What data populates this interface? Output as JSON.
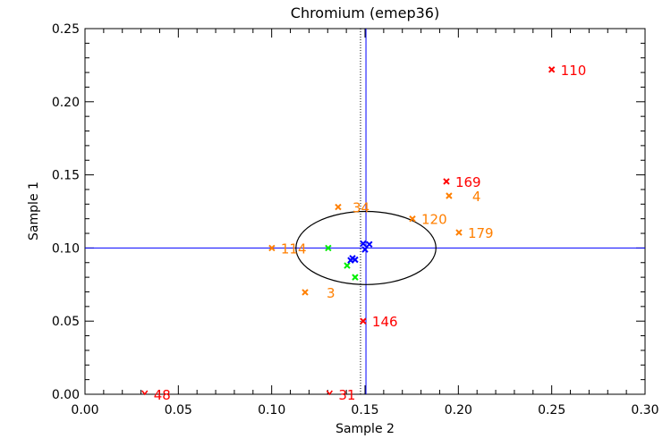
{
  "chart_data": {
    "type": "scatter",
    "title": "Chromium (emep36)",
    "xlabel": "Sample 2",
    "ylabel": "Sample 1",
    "xlim": [
      0.0,
      0.3
    ],
    "ylim": [
      0.0,
      0.25
    ],
    "xticks": [
      "0.00",
      "0.05",
      "0.10",
      "0.15",
      "0.20",
      "0.25",
      "0.30"
    ],
    "yticks": [
      "0.00",
      "0.05",
      "0.10",
      "0.15",
      "0.20",
      "0.25"
    ],
    "grid": false,
    "reference_lines": {
      "vertical_solid_x": 0.1505,
      "vertical_dotted_x": 0.1476,
      "horizontal_y": 0.1
    },
    "ellipse": {
      "cx": 0.1505,
      "cy": 0.1,
      "rx": 0.0375,
      "ry": 0.025
    },
    "colors": {
      "red": "#ff0000",
      "orange": "#ff7f00",
      "green": "#00ee00",
      "blue": "#0000ff",
      "line_blue": "#0000ff"
    },
    "series": [
      {
        "name": "red",
        "points": [
          {
            "x": 0.25,
            "y": 0.222,
            "label": "110"
          },
          {
            "x": 0.1936,
            "y": 0.1455,
            "label": "169"
          },
          {
            "x": 0.149,
            "y": 0.05,
            "label": "146"
          },
          {
            "x": 0.032,
            "y": 0.0,
            "label": "48",
            "off_scale": true
          },
          {
            "x": 0.131,
            "y": 0.0,
            "label": "31",
            "off_scale": true
          }
        ]
      },
      {
        "name": "orange",
        "points": [
          {
            "x": 0.195,
            "y": 0.1357,
            "label": "4"
          },
          {
            "x": 0.1356,
            "y": 0.128,
            "label": "34"
          },
          {
            "x": 0.1754,
            "y": 0.12,
            "label": "120"
          },
          {
            "x": 0.2003,
            "y": 0.1106,
            "label": "179"
          },
          {
            "x": 0.1001,
            "y": 0.1,
            "label": "114"
          },
          {
            "x": 0.1179,
            "y": 0.0697,
            "label": "3"
          }
        ]
      },
      {
        "name": "green",
        "points": [
          {
            "x": 0.1303,
            "y": 0.1
          },
          {
            "x": 0.1404,
            "y": 0.088
          },
          {
            "x": 0.1447,
            "y": 0.08
          }
        ]
      },
      {
        "name": "blue",
        "points": [
          {
            "x": 0.149,
            "y": 0.103
          },
          {
            "x": 0.1523,
            "y": 0.1025
          },
          {
            "x": 0.15,
            "y": 0.099
          },
          {
            "x": 0.1447,
            "y": 0.092
          },
          {
            "x": 0.1433,
            "y": 0.093
          },
          {
            "x": 0.1423,
            "y": 0.0916
          }
        ]
      }
    ]
  }
}
